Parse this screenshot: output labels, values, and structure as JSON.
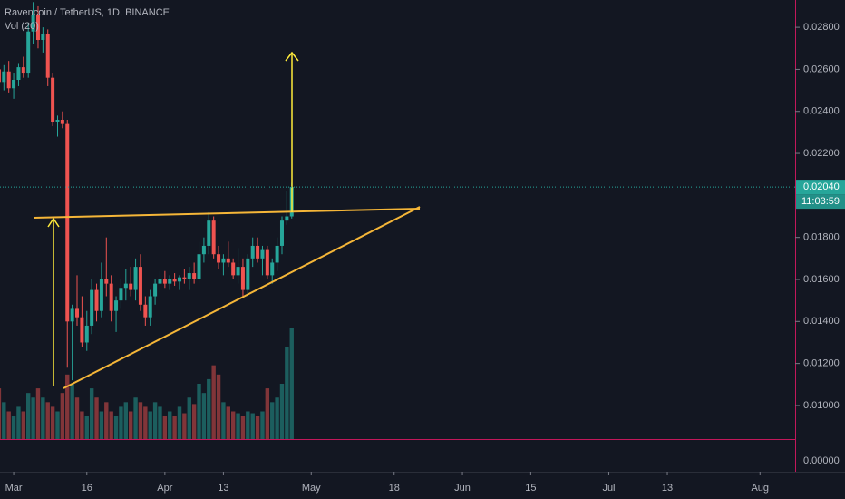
{
  "chart_data": {
    "type": "candlestick",
    "title": "Ravencoin / TetherUS, 1D, BINANCE",
    "volume_label": "Vol (20)",
    "price_label": "0.02040",
    "countdown": "11:03:59",
    "volume_axis_label": "0.00000",
    "up_color": "#26a69a",
    "down_color": "#ef5350",
    "x": [
      -3,
      -2,
      -1,
      0,
      1,
      2,
      3,
      4,
      5,
      6,
      7,
      8,
      9,
      10,
      11,
      12,
      13,
      14,
      15,
      16,
      17,
      18,
      19,
      20,
      21,
      22,
      23,
      24,
      25,
      26,
      27,
      28,
      29,
      30,
      31,
      32,
      33,
      34,
      35,
      36,
      37,
      38,
      39,
      40,
      41,
      42,
      43,
      44,
      45,
      46,
      47,
      48,
      49,
      50,
      51,
      52,
      53,
      54,
      55,
      56,
      57
    ],
    "open": [
      0.026,
      0.0254,
      0.0259,
      0.0251,
      0.0255,
      0.0261,
      0.0258,
      0.0278,
      0.0286,
      0.0274,
      0.0277,
      0.0256,
      0.0235,
      0.0236,
      0.0234,
      0.014,
      0.0146,
      0.0142,
      0.013,
      0.0138,
      0.0155,
      0.0145,
      0.016,
      0.0158,
      0.0145,
      0.015,
      0.0156,
      0.0158,
      0.0155,
      0.0166,
      0.0148,
      0.0142,
      0.0152,
      0.0158,
      0.016,
      0.0158,
      0.016,
      0.0159,
      0.0161,
      0.016,
      0.0163,
      0.016,
      0.0172,
      0.0176,
      0.0188,
      0.0172,
      0.0168,
      0.017,
      0.0168,
      0.0162,
      0.0166,
      0.0155,
      0.017,
      0.0176,
      0.017,
      0.0174,
      0.0162,
      0.0168,
      0.0176,
      0.0188,
      0.019
    ],
    "high": [
      0.0265,
      0.0262,
      0.0264,
      0.0258,
      0.0263,
      0.0266,
      0.0282,
      0.0292,
      0.029,
      0.028,
      0.0279,
      0.0258,
      0.0238,
      0.024,
      0.0236,
      0.0148,
      0.0162,
      0.0152,
      0.0145,
      0.016,
      0.0158,
      0.0168,
      0.018,
      0.0162,
      0.0152,
      0.016,
      0.0165,
      0.0166,
      0.017,
      0.0172,
      0.0152,
      0.0155,
      0.016,
      0.0164,
      0.0164,
      0.0162,
      0.0163,
      0.0162,
      0.0165,
      0.0166,
      0.0168,
      0.0178,
      0.018,
      0.0192,
      0.019,
      0.0176,
      0.0172,
      0.0178,
      0.017,
      0.0175,
      0.017,
      0.0172,
      0.018,
      0.018,
      0.0176,
      0.0176,
      0.017,
      0.018,
      0.019,
      0.0202,
      0.0206
    ],
    "low": [
      0.0252,
      0.025,
      0.0249,
      0.0246,
      0.0252,
      0.0256,
      0.0256,
      0.0272,
      0.027,
      0.0268,
      0.0252,
      0.0233,
      0.0228,
      0.0232,
      0.0118,
      0.0112,
      0.0138,
      0.0128,
      0.0126,
      0.0134,
      0.014,
      0.0142,
      0.0152,
      0.014,
      0.0135,
      0.0146,
      0.015,
      0.0152,
      0.015,
      0.0145,
      0.0138,
      0.0138,
      0.0148,
      0.0154,
      0.0156,
      0.0155,
      0.0157,
      0.0155,
      0.0158,
      0.0155,
      0.0158,
      0.0158,
      0.0168,
      0.0172,
      0.017,
      0.0165,
      0.0162,
      0.0166,
      0.016,
      0.0158,
      0.0152,
      0.0152,
      0.0166,
      0.0168,
      0.0162,
      0.016,
      0.0158,
      0.0164,
      0.0172,
      0.0186,
      0.0189
    ],
    "close": [
      0.0254,
      0.0259,
      0.0251,
      0.0255,
      0.0261,
      0.0258,
      0.0278,
      0.0286,
      0.0274,
      0.0277,
      0.0256,
      0.0235,
      0.0236,
      0.0234,
      0.014,
      0.0146,
      0.0142,
      0.013,
      0.0138,
      0.0155,
      0.0145,
      0.016,
      0.0158,
      0.0145,
      0.015,
      0.0156,
      0.0158,
      0.0155,
      0.0166,
      0.0148,
      0.0142,
      0.0152,
      0.0158,
      0.016,
      0.0158,
      0.016,
      0.0159,
      0.0161,
      0.016,
      0.0163,
      0.016,
      0.0172,
      0.0176,
      0.0188,
      0.0172,
      0.0168,
      0.017,
      0.0168,
      0.0162,
      0.0166,
      0.0155,
      0.017,
      0.0176,
      0.017,
      0.0174,
      0.0162,
      0.0168,
      0.0176,
      0.0188,
      0.019,
      0.0204
    ],
    "volume": [
      55,
      40,
      30,
      25,
      35,
      30,
      50,
      45,
      55,
      45,
      40,
      35,
      30,
      50,
      70,
      60,
      45,
      30,
      25,
      55,
      45,
      30,
      40,
      30,
      25,
      35,
      40,
      30,
      45,
      40,
      35,
      30,
      40,
      35,
      25,
      30,
      25,
      35,
      28,
      45,
      38,
      60,
      50,
      65,
      80,
      70,
      40,
      35,
      30,
      28,
      25,
      30,
      28,
      25,
      30,
      55,
      40,
      45,
      60,
      100,
      120
    ],
    "vlim": [
      0,
      120
    ],
    "xlim": [
      -2.8,
      160.2
    ],
    "xticks": [
      {
        "value": 0,
        "label": "Mar"
      },
      {
        "value": 15,
        "label": "16"
      },
      {
        "value": 31,
        "label": "Apr"
      },
      {
        "value": 43,
        "label": "13"
      },
      {
        "value": 61,
        "label": "May"
      },
      {
        "value": 78,
        "label": "18"
      },
      {
        "value": 92,
        "label": "Jun"
      },
      {
        "value": 106,
        "label": "15"
      },
      {
        "value": 122,
        "label": "Jul"
      },
      {
        "value": 134,
        "label": "13"
      },
      {
        "value": 153,
        "label": "Aug"
      }
    ],
    "ylim": [
      0.0084,
      0.0293
    ],
    "yticks": [
      {
        "value": 0.028,
        "label": "0.02800"
      },
      {
        "value": 0.026,
        "label": "0.02600"
      },
      {
        "value": 0.024,
        "label": "0.02400"
      },
      {
        "value": 0.022,
        "label": "0.02200"
      },
      {
        "value": 0.018,
        "label": "0.01800"
      },
      {
        "value": 0.016,
        "label": "0.01600"
      },
      {
        "value": 0.014,
        "label": "0.01400"
      },
      {
        "value": 0.012,
        "label": "0.01200"
      },
      {
        "value": 0.01,
        "label": "0.01000"
      }
    ]
  }
}
